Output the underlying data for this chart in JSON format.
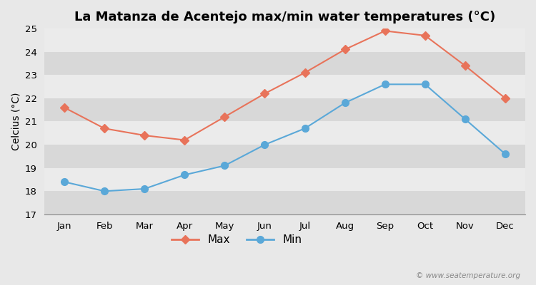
{
  "title": "La Matanza de Acentejo max/min water temperatures (°C)",
  "ylabel": "Celcius (°C)",
  "months": [
    "Jan",
    "Feb",
    "Mar",
    "Apr",
    "May",
    "Jun",
    "Jul",
    "Aug",
    "Sep",
    "Oct",
    "Nov",
    "Dec"
  ],
  "max_temps": [
    21.6,
    20.7,
    20.4,
    20.2,
    21.2,
    22.2,
    23.1,
    24.1,
    24.9,
    24.7,
    23.4,
    22.0
  ],
  "min_temps": [
    18.4,
    18.0,
    18.1,
    18.7,
    19.1,
    20.0,
    20.7,
    21.8,
    22.6,
    22.6,
    21.1,
    19.6
  ],
  "max_color": "#e8735a",
  "min_color": "#5aa8d8",
  "bg_color": "#e8e8e8",
  "band_light": "#ebebeb",
  "band_dark": "#d8d8d8",
  "ylim": [
    17,
    25
  ],
  "yticks": [
    17,
    18,
    19,
    20,
    21,
    22,
    23,
    24,
    25
  ],
  "watermark": "© www.seatemperature.org",
  "title_fontsize": 13,
  "label_fontsize": 10,
  "tick_fontsize": 9.5,
  "max_marker": "D",
  "min_marker": "o",
  "marker_size_max": 6,
  "marker_size_min": 7,
  "linewidth": 1.5
}
